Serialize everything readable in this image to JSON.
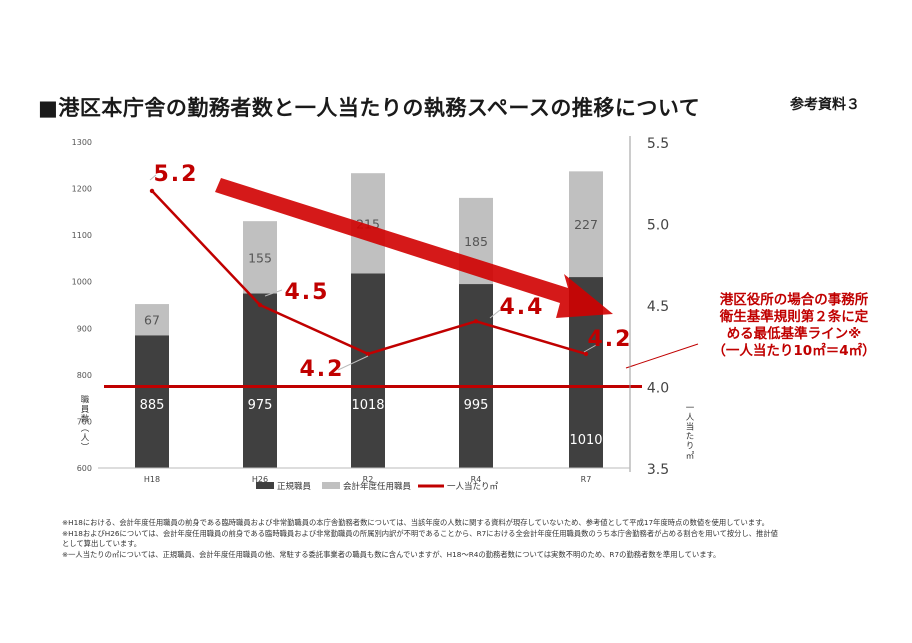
{
  "title": "■港区本庁舎の勤務者数と一人当たりの執務スペースの推移について",
  "badge": "参考資料３",
  "callout": {
    "lines": [
      "港区役所の場合の事務所",
      "衛生基準規則第２条に定",
      "める最低基準ライン※",
      "（一人当たり10㎡＝4㎡）"
    ]
  },
  "notes": [
    "※H18における、会計年度任用職員の前身である臨時職員および非常勤職員の本庁舎勤務者数については、当該年度の人数に関する資料が現存していないため、参考値として平成17年度時点の数値を使用しています。",
    "※H18およびH26については、会計年度任用職員の前身である臨時職員および非常勤職員の所属別内訳が不明であることから、R7における全会計年度任用職員数のうち本庁舎勤務者が占める割合を用いて按分し、推計値",
    "として算出しています。",
    "※一人当たりの㎡については、正規職員、会計年度任用職員の他、常駐する委託事業者の職員も数に含んでいますが、H18～R4の勤務者数については実数不明のため、R7の勤務者数を準用しています。"
  ],
  "chart_data": {
    "type": "bar+line",
    "categories": [
      "H18",
      "H26",
      "R2",
      "R4",
      "R7"
    ],
    "series": [
      {
        "name": "正規職員",
        "kind": "stacked-bar",
        "axis": "left",
        "color": "#404040",
        "values": [
          885,
          975,
          1018,
          995,
          1010
        ]
      },
      {
        "name": "会計年度任用職員",
        "kind": "stacked-bar",
        "axis": "left",
        "color": "#c0c0c0",
        "values": [
          67,
          155,
          215,
          185,
          227
        ]
      },
      {
        "name": "一人当たり㎡",
        "kind": "line",
        "axis": "right",
        "color": "#c00000",
        "values": [
          5.2,
          4.5,
          4.2,
          4.4,
          4.2
        ]
      }
    ],
    "line_labels": [
      "5.2",
      "4.5",
      "4.2",
      "4.4",
      "4.2"
    ],
    "reference_line": {
      "value": 4.0,
      "axis": "right",
      "color": "#c00000"
    },
    "left_axis": {
      "range": [
        600,
        1300
      ],
      "ticks": [
        600,
        700,
        800,
        900,
        1000,
        1100,
        1200,
        1300
      ],
      "label": "職員数（人）"
    },
    "right_axis": {
      "range": [
        3.5,
        5.5
      ],
      "ticks": [
        "3.5",
        "4.0",
        "4.5",
        "5.0",
        "5.5"
      ],
      "label": "一人当たり㎡"
    },
    "legend": [
      "正規職員",
      "会計年度任用職員",
      "一人当たり㎡"
    ]
  }
}
